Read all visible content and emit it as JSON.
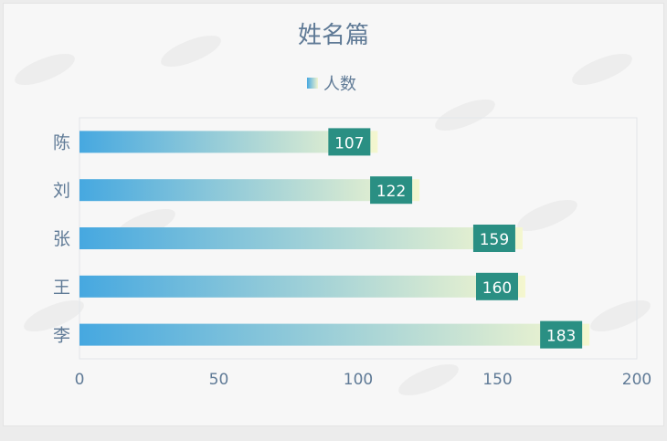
{
  "chart_data": {
    "type": "bar",
    "orientation": "horizontal",
    "title": "姓名篇",
    "categories": [
      "陈",
      "刘",
      "张",
      "王",
      "李"
    ],
    "series": [
      {
        "name": "人数",
        "values": [
          107,
          122,
          159,
          160,
          183
        ]
      }
    ],
    "xlim": [
      0,
      200
    ],
    "xticks": [
      0,
      50,
      100,
      150,
      200
    ],
    "legend": "top-center",
    "grid": false,
    "colors": {
      "gradient_start": "#46a8e0",
      "gradient_end": "#f5f7cf",
      "label_bg": "#2a8f83",
      "text": "#5f7a96"
    }
  }
}
